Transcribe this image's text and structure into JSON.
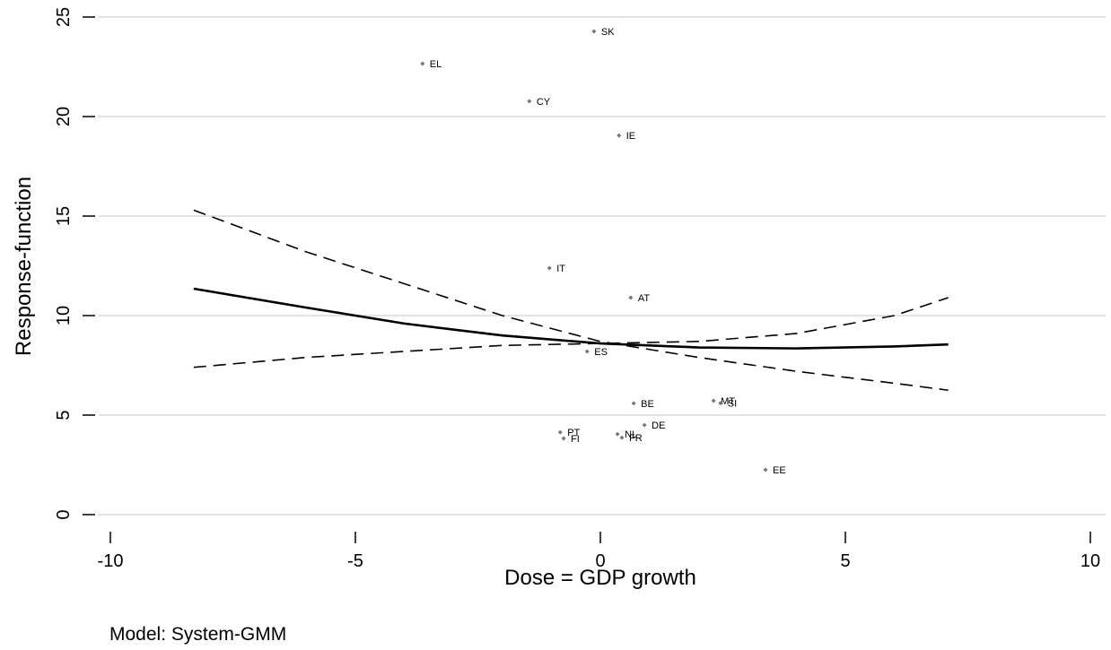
{
  "chart_data": {
    "type": "scatter",
    "x_label": "Dose = GDP growth",
    "y_label": "Response-function",
    "note": "Model: System-GMM",
    "labels": [
      "SK",
      "EL",
      "CY",
      "IE",
      "IT",
      "AT",
      "ES",
      "BE",
      "MT",
      "SI",
      "DE",
      "PT",
      "FI",
      "NL",
      "FR",
      "EE"
    ],
    "x": [
      -0.13,
      -3.63,
      -1.45,
      0.38,
      -1.04,
      0.62,
      -0.27,
      0.68,
      2.31,
      2.45,
      0.9,
      -0.82,
      -0.75,
      0.35,
      0.44,
      3.37
    ],
    "y": [
      24.28,
      22.66,
      20.77,
      19.05,
      12.39,
      10.9,
      8.2,
      5.59,
      5.72,
      5.6,
      4.5,
      4.14,
      3.83,
      4.05,
      3.87,
      2.25
    ],
    "point_color": "#777777",
    "curve_x": [
      -8.3,
      -6,
      -4,
      -2,
      0,
      2,
      4,
      6,
      7.1
    ],
    "curves": [
      {
        "style": "solid",
        "values": [
          11.35,
          10.4,
          9.6,
          9.0,
          8.6,
          8.4,
          8.35,
          8.45,
          8.55
        ]
      },
      {
        "style": "dashed",
        "values": [
          15.3,
          13.2,
          11.6,
          10.0,
          8.7,
          7.9,
          7.2,
          6.6,
          6.25
        ]
      },
      {
        "style": "dashed",
        "values": [
          7.4,
          7.9,
          8.2,
          8.5,
          8.6,
          8.7,
          9.1,
          10.0,
          10.9
        ]
      }
    ],
    "curve_color": "#000000",
    "xlim": [
      -10,
      10
    ],
    "ylim": [
      0,
      25
    ],
    "xticks": [
      -10,
      -5,
      0,
      5,
      10
    ],
    "yticks": [
      0,
      5,
      10,
      15,
      20,
      25
    ],
    "grid": true
  }
}
